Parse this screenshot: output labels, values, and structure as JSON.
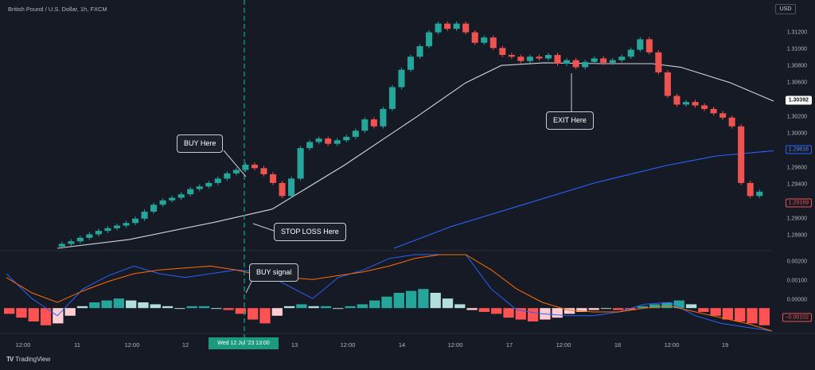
{
  "symbol": {
    "title": "British Pound / U.S. Dollar, 1h, FXCM"
  },
  "currency_button": "USD",
  "price_axis": [
    "1.31200",
    "1.31000",
    "1.30800",
    "1.30600",
    "1.30200",
    "1.30000",
    "1.29600",
    "1.29400",
    "1.29000",
    "1.28800"
  ],
  "price_tags": {
    "current": "1.30392",
    "blue_ma": "1.29816",
    "last_close": "1.29169"
  },
  "macd_axis": [
    "0.00200",
    "0.00100",
    "0.00000"
  ],
  "macd_tag": "−0.00102",
  "time_axis": [
    "12:00",
    "11",
    "12:00",
    "12",
    "13",
    "12:00",
    "14",
    "12:00",
    "17",
    "12:00",
    "18",
    "12:00",
    "19"
  ],
  "crosshair_label": "Wed 12 Jul '23   13:00",
  "annotations": {
    "buy": "BUY Here",
    "stop_loss": "STOP LOSS Here",
    "exit": "EXIT Here",
    "buy_signal": "BUY signal"
  },
  "branding": "TradingView",
  "colors": {
    "background": "#161a25",
    "up": "#26a69a",
    "down": "#ef5350",
    "slow_ma": "#d1d4dc",
    "fast_ma": "#2962ff",
    "macd_line": "#2962ff",
    "signal_line": "#ff6d00",
    "crosshair": "#1a9a7e"
  },
  "chart_data": [
    {
      "type": "candlestick",
      "title": "British Pound / U.S. Dollar, 1h, FXCM",
      "price_range": [
        1.287,
        1.3135
      ],
      "close_path": [
        1.2875,
        1.2878,
        1.2882,
        1.2886,
        1.289,
        1.2893,
        1.2896,
        1.2899,
        1.2904,
        1.2912,
        1.292,
        1.2925,
        1.2928,
        1.2932,
        1.2938,
        1.2941,
        1.2945,
        1.295,
        1.2956,
        1.296,
        1.2966,
        1.2962,
        1.2955,
        1.2945,
        1.293,
        1.295,
        1.2985,
        1.2992,
        1.2996,
        1.299,
        1.2994,
        1.2998,
        1.3005,
        1.3018,
        1.301,
        1.303,
        1.3055,
        1.3075,
        1.309,
        1.3102,
        1.3118,
        1.3128,
        1.3122,
        1.3128,
        1.3118,
        1.3106,
        1.3112,
        1.31,
        1.3092,
        1.309,
        1.3085,
        1.309,
        1.3088,
        1.3092,
        1.3082,
        1.3086,
        1.3078,
        1.3084,
        1.3088,
        1.3083,
        1.3086,
        1.309,
        1.3098,
        1.311,
        1.3095,
        1.3072,
        1.3045,
        1.3035,
        1.3038,
        1.3034,
        1.303,
        1.3025,
        1.302,
        1.301,
        1.2945,
        1.293,
        1.2935
      ],
      "slow_ma_points": [
        [
          0,
          1.287
        ],
        [
          0.1,
          1.288
        ],
        [
          0.22,
          1.29
        ],
        [
          0.3,
          1.2915
        ],
        [
          0.4,
          1.2965
        ],
        [
          0.5,
          1.302
        ],
        [
          0.57,
          1.306
        ],
        [
          0.62,
          1.308
        ],
        [
          0.68,
          1.3083
        ],
        [
          0.76,
          1.3082
        ],
        [
          0.83,
          1.3082
        ],
        [
          0.87,
          1.3078
        ],
        [
          0.94,
          1.306
        ],
        [
          1,
          1.3039
        ]
      ],
      "fast_ma_points": [
        [
          0.47,
          1.287
        ],
        [
          0.55,
          1.2895
        ],
        [
          0.65,
          1.292
        ],
        [
          0.75,
          1.2945
        ],
        [
          0.85,
          1.2965
        ],
        [
          0.92,
          1.2976
        ],
        [
          1,
          1.2982
        ]
      ],
      "current_price": 1.30392,
      "blue_ma_value": 1.29816,
      "last_close": 1.29169
    },
    {
      "type": "bar",
      "title": "MACD",
      "ylim": [
        -0.0012,
        0.0028
      ],
      "histogram": [
        -0.0003,
        -0.0005,
        -0.0007,
        -0.0009,
        -0.0008,
        -0.0004,
        0.0001,
        0.0003,
        0.0004,
        0.0005,
        0.0004,
        0.0003,
        0.0002,
        0.0001,
        0.0,
        0.0001,
        0.0001,
        0.0,
        -0.0001,
        -0.0003,
        -0.0006,
        -0.0008,
        -0.0004,
        0.0001,
        0.0002,
        0.0001,
        0.0001,
        0.0,
        0.0001,
        0.0002,
        0.0004,
        0.0006,
        0.0008,
        0.0009,
        0.001,
        0.0008,
        0.0005,
        0.0002,
        -0.0001,
        -0.0002,
        -0.0003,
        -0.0005,
        -0.0006,
        -0.0007,
        -0.0006,
        -0.0005,
        -0.0003,
        -0.0002,
        -0.0001,
        0.0,
        -0.0001,
        -0.0001,
        0.0001,
        0.0002,
        0.0003,
        0.0004,
        0.0002,
        -0.0002,
        -0.0004,
        -0.0006,
        -0.0007,
        -0.0008,
        -0.0009
      ],
      "macd_line": [
        0.0018,
        0.0005,
        -0.0004,
        0.001,
        0.0017,
        0.0022,
        0.0018,
        0.0016,
        0.0018,
        0.002,
        0.0019,
        0.0012,
        0.0005,
        0.0016,
        0.002,
        0.0026,
        0.0032,
        0.004,
        0.003,
        0.001,
        -0.0001,
        -0.0003,
        -0.0004,
        -0.0004,
        -0.0002,
        0.0002,
        0.0003,
        -0.0004,
        -0.0008,
        -0.001,
        -0.0012
      ],
      "signal_line": [
        0.0016,
        0.0008,
        0.0003,
        0.0009,
        0.0014,
        0.0018,
        0.002,
        0.0021,
        0.0022,
        0.002,
        0.0017,
        0.0016,
        0.0015,
        0.0017,
        0.0019,
        0.0022,
        0.0026,
        0.0032,
        0.003,
        0.002,
        0.001,
        0.0003,
        -0.0001,
        -0.0002,
        -0.0002,
        0.0,
        0.0001,
        -0.0002,
        -0.0005,
        -0.0008,
        -0.0012
      ]
    }
  ]
}
